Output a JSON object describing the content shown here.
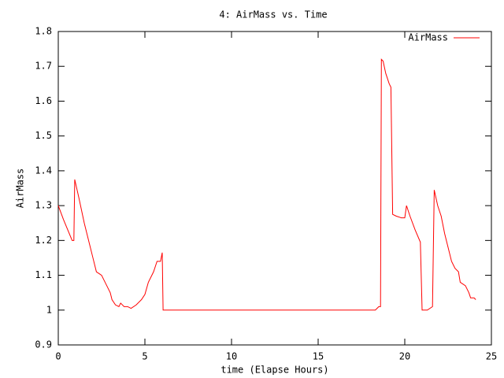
{
  "chart_data": {
    "type": "line",
    "title": "4: AirMass vs. Time",
    "x_label": "time (Elapse Hours)",
    "y_label": "AirMass",
    "xlim": [
      0,
      25
    ],
    "xticks": [
      0,
      5,
      10,
      15,
      20,
      25
    ],
    "ylim": [
      0.9,
      1.8
    ],
    "yticks": [
      0.9,
      1,
      1.1,
      1.2,
      1.3,
      1.4,
      1.5,
      1.6,
      1.7,
      1.8
    ],
    "legend": "top-right",
    "series": [
      {
        "name": "AirMass",
        "color": "#ff0000",
        "x": [
          0,
          0.3,
          0.8,
          0.9,
          0.95,
          1.2,
          1.5,
          1.8,
          2.0,
          2.2,
          2.5,
          2.8,
          3.0,
          3.1,
          3.3,
          3.5,
          3.6,
          3.8,
          4.0,
          4.2,
          4.5,
          4.8,
          5.0,
          5.2,
          5.5,
          5.7,
          5.9,
          6.0,
          6.05,
          18.3,
          18.5,
          18.6,
          18.65,
          18.75,
          18.9,
          19.1,
          19.2,
          19.3,
          19.5,
          19.8,
          20.0,
          20.1,
          20.3,
          20.6,
          20.9,
          21.0,
          21.3,
          21.6,
          21.7,
          21.9,
          22.1,
          22.3,
          22.5,
          22.7,
          22.9,
          23.1,
          23.2,
          23.5,
          23.7,
          23.8,
          24.0,
          24.1
        ],
        "values": [
          1.3,
          1.26,
          1.2,
          1.2,
          1.375,
          1.32,
          1.25,
          1.19,
          1.15,
          1.11,
          1.1,
          1.07,
          1.05,
          1.03,
          1.015,
          1.01,
          1.02,
          1.01,
          1.01,
          1.005,
          1.015,
          1.03,
          1.045,
          1.08,
          1.11,
          1.14,
          1.14,
          1.165,
          1.0,
          1.0,
          1.01,
          1.01,
          1.72,
          1.715,
          1.68,
          1.65,
          1.64,
          1.275,
          1.27,
          1.265,
          1.265,
          1.3,
          1.27,
          1.23,
          1.195,
          1.0,
          1.0,
          1.01,
          1.345,
          1.3,
          1.27,
          1.22,
          1.18,
          1.14,
          1.12,
          1.11,
          1.08,
          1.07,
          1.05,
          1.035,
          1.035,
          1.03
        ]
      }
    ]
  }
}
